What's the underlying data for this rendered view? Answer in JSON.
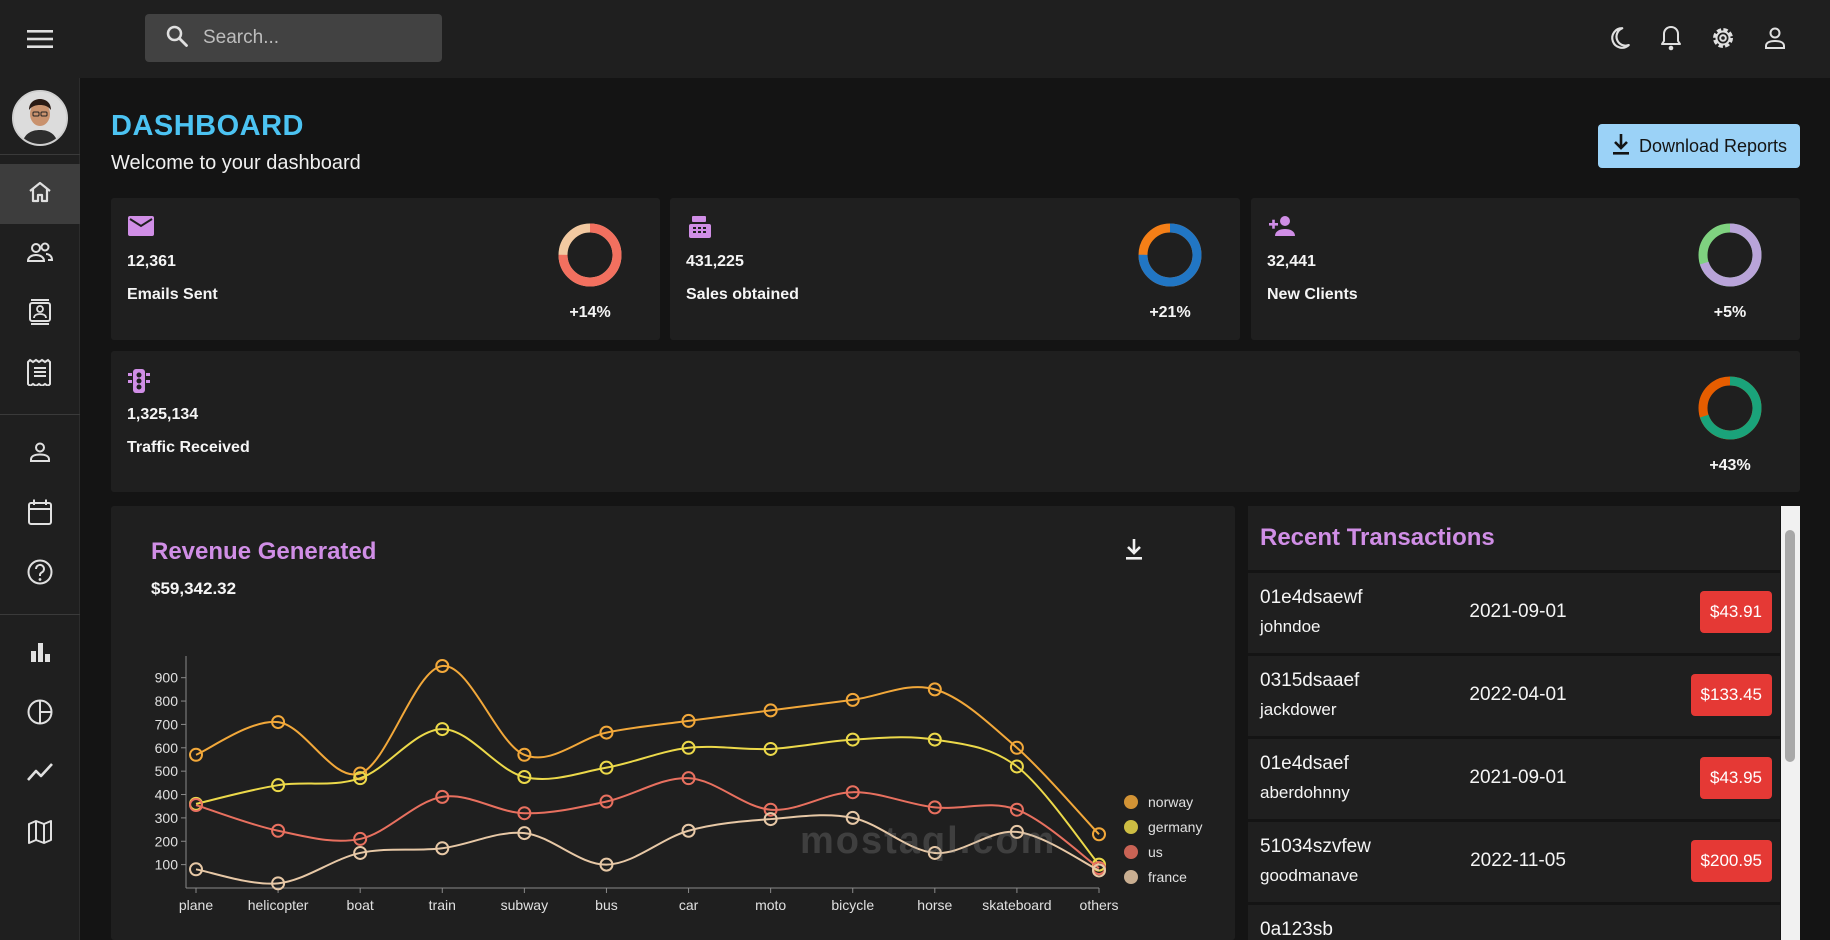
{
  "search": {
    "placeholder": "Search..."
  },
  "header": {
    "title": "DASHBOARD",
    "subtitle": "Welcome to your dashboard",
    "download_label": "Download Reports"
  },
  "stats": [
    {
      "value": "12,361",
      "label": "Emails Sent",
      "percent": "+14%",
      "progress": 0.75,
      "colors": [
        "#f2c9a1",
        "#f2705f"
      ]
    },
    {
      "value": "431,225",
      "label": "Sales obtained",
      "percent": "+21%",
      "progress": 0.75,
      "colors": [
        "#f57f17",
        "#2176c4"
      ]
    },
    {
      "value": "32,441",
      "label": "New Clients",
      "percent": "+5%",
      "progress": 0.7,
      "colors": [
        "#7fd280",
        "#b9a4d9"
      ]
    },
    {
      "value": "1,325,134",
      "label": "Traffic Received",
      "percent": "+43%",
      "progress": 0.7,
      "colors": [
        "#e65d00",
        "#1aa37a"
      ]
    }
  ],
  "revenue": {
    "title": "Revenue Generated",
    "amount": "$59,342.32"
  },
  "chart_data": {
    "type": "line",
    "categories": [
      "plane",
      "helicopter",
      "boat",
      "train",
      "subway",
      "bus",
      "car",
      "moto",
      "bicycle",
      "horse",
      "skateboard",
      "others"
    ],
    "ylim": [
      0,
      950
    ],
    "yticks": [
      100,
      200,
      300,
      400,
      500,
      600,
      700,
      800,
      900
    ],
    "series": [
      {
        "name": "norway",
        "color": "#f2a83a",
        "values": [
          570,
          710,
          490,
          950,
          570,
          665,
          715,
          760,
          805,
          850,
          600,
          230
        ]
      },
      {
        "name": "germany",
        "color": "#ecd94a",
        "values": [
          360,
          440,
          470,
          680,
          475,
          515,
          600,
          595,
          635,
          635,
          520,
          100
        ]
      },
      {
        "name": "us",
        "color": "#e8705f",
        "values": [
          355,
          245,
          210,
          390,
          320,
          370,
          470,
          335,
          410,
          345,
          335,
          85
        ]
      },
      {
        "name": "france",
        "color": "#e7c8a6",
        "values": [
          80,
          20,
          150,
          170,
          235,
          100,
          245,
          295,
          300,
          150,
          240,
          75
        ]
      }
    ]
  },
  "transactions": {
    "title": "Recent Transactions",
    "rows": [
      {
        "id": "01e4dsaewf",
        "user": "johndoe",
        "date": "2021-09-01",
        "cost": "$43.91"
      },
      {
        "id": "0315dsaaef",
        "user": "jackdower",
        "date": "2022-04-01",
        "cost": "$133.45"
      },
      {
        "id": "01e4dsaef",
        "user": "aberdohnny",
        "date": "2021-09-01",
        "cost": "$43.95"
      },
      {
        "id": "51034szvfew",
        "user": "goodmanave",
        "date": "2022-11-05",
        "cost": "$200.95"
      },
      {
        "id": "0a123sb",
        "user": "",
        "date": "",
        "cost": ""
      }
    ]
  },
  "watermark": "mostaql.com"
}
